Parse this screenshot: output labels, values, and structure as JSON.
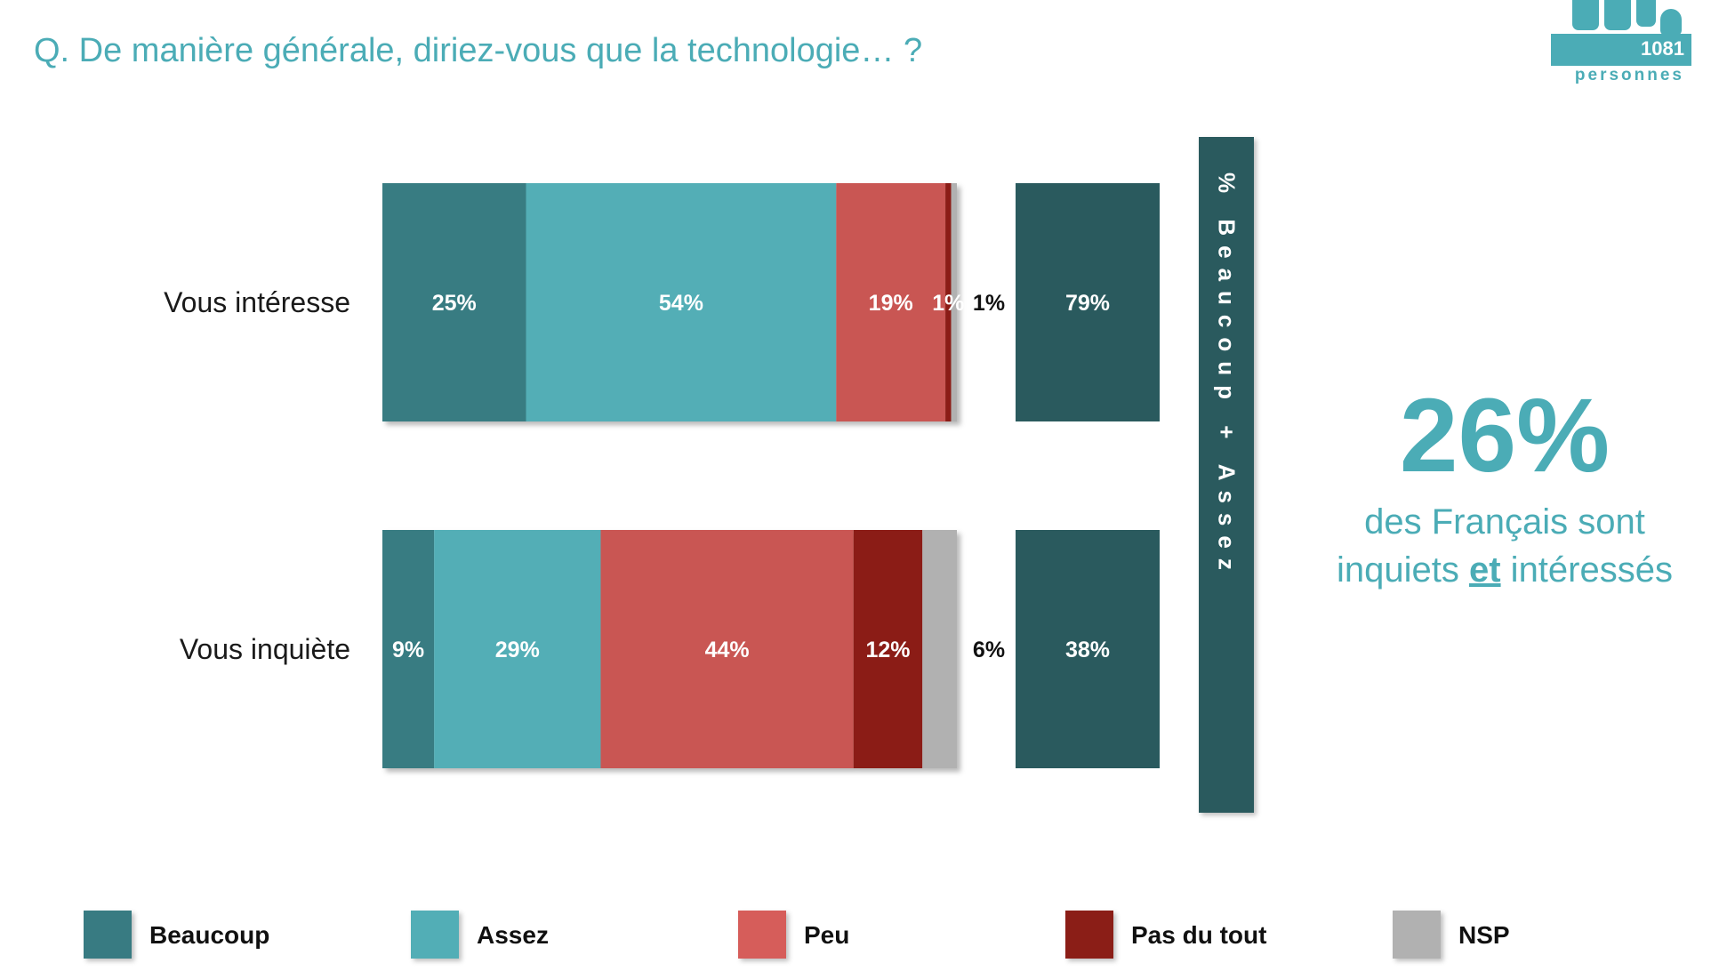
{
  "header": {
    "question": "Q. De manière générale, diriez-vous que la technologie… ?"
  },
  "logo": {
    "count": "1081",
    "subtitle": "personnes",
    "icon": "people-icon"
  },
  "colors": {
    "beaucoup": "#387b82",
    "assez": "#52aeb6",
    "peu": "#c95653",
    "pas_du_tout": "#8b1e17",
    "nsp": "#b1b1b1",
    "total": "#2a5a5e",
    "accent": "#4bacb6"
  },
  "chart_data": {
    "type": "bar",
    "orientation": "horizontal",
    "stacked": true,
    "categories": [
      "Vous intéresse",
      "Vous inquiète"
    ],
    "series": [
      {
        "name": "Beaucoup",
        "values": [
          25,
          9
        ],
        "labels": [
          "25%",
          "9%"
        ]
      },
      {
        "name": "Assez",
        "values": [
          54,
          29
        ],
        "labels": [
          "54%",
          "29%"
        ]
      },
      {
        "name": "Peu",
        "values": [
          19,
          44
        ],
        "labels": [
          "19%",
          "44%"
        ]
      },
      {
        "name": "Pas du tout",
        "values": [
          1,
          12
        ],
        "labels": [
          "1%",
          "12%"
        ]
      },
      {
        "name": "NSP",
        "values": [
          1,
          6
        ],
        "labels": [
          "1%",
          "6%"
        ]
      }
    ],
    "totals": {
      "name": "% Beaucoup + Assez",
      "values": [
        79,
        38
      ],
      "labels": [
        "79%",
        "38%"
      ]
    },
    "legend_position": "bottom",
    "grid": false
  },
  "callout": {
    "value": "26%",
    "line1": "des Français sont",
    "line2_before": "inquiets ",
    "line2_emphasis": "et",
    "line2_after": " intéressés"
  }
}
